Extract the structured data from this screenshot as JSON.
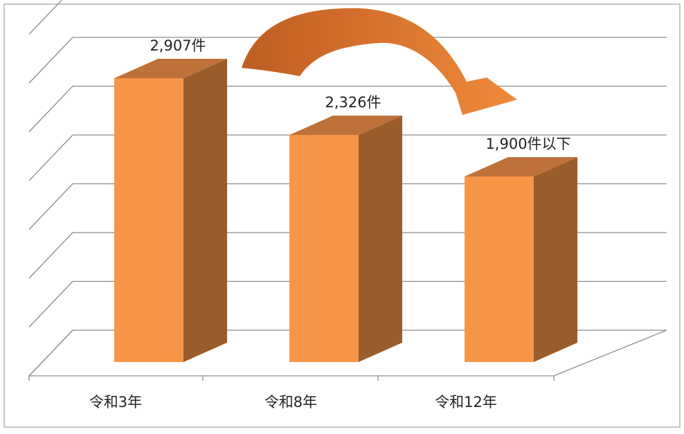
{
  "chart_data": {
    "type": "bar",
    "style": "3d-column",
    "categories": [
      "令和3年",
      "令和8年",
      "令和12年"
    ],
    "values": [
      2907,
      2326,
      1900
    ],
    "data_labels": [
      "2,907件",
      "2,326件",
      "1,900件以下"
    ],
    "ylim": [
      0,
      3500
    ],
    "grid": true,
    "legend": "none",
    "annotation": "curved arrow from 令和3年 to 令和12年 indicating decrease",
    "colors": {
      "bar_front": "#F79646",
      "bar_side": "#9B5C2B",
      "bar_top": "#BE723A",
      "grid": "#8C8C8C",
      "arrow_start": "#BE5C22",
      "arrow_end": "#F08A3A"
    }
  }
}
